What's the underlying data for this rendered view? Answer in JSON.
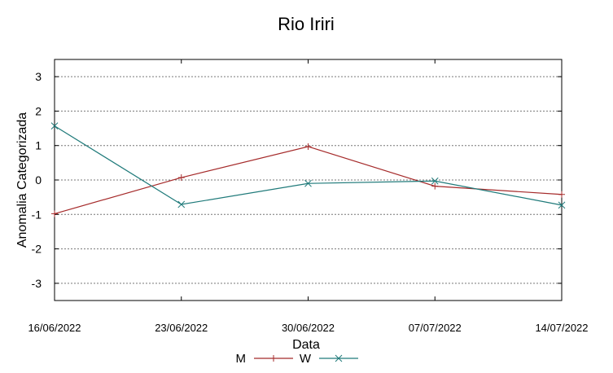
{
  "chart_data": {
    "type": "line",
    "title": "Rio Iriri",
    "xlabel": "Data",
    "ylabel": "Anomalia Categorizada",
    "categories": [
      "16/06/2022",
      "23/06/2022",
      "30/06/2022",
      "07/07/2022",
      "14/07/2022"
    ],
    "ylim": [
      -3.5,
      3.5
    ],
    "yticks": [
      "3",
      "2",
      "1",
      "0",
      "-1",
      "-2",
      "-3"
    ],
    "grid": "horizontal dotted",
    "legend_position": "bottom",
    "series": [
      {
        "name": "M",
        "color": "#a52a2a",
        "marker": "plus",
        "values": [
          -0.98,
          0.07,
          0.97,
          -0.18,
          -0.42
        ]
      },
      {
        "name": "W",
        "color": "#1f7a7a",
        "marker": "x",
        "values": [
          1.57,
          -0.71,
          -0.1,
          -0.03,
          -0.73
        ]
      }
    ]
  }
}
